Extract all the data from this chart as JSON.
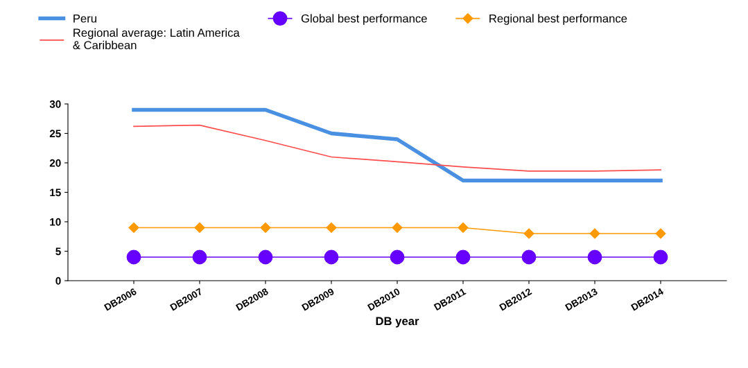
{
  "chart_data": {
    "type": "line",
    "xlabel": "DB year",
    "categories": [
      "DB2006",
      "DB2007",
      "DB2008",
      "DB2009",
      "DB2010",
      "DB2011",
      "DB2012",
      "DB2013",
      "DB2014"
    ],
    "series": [
      {
        "name": "Peru",
        "color": "#4a90e2",
        "marker": "none",
        "values": [
          29,
          29,
          29,
          25,
          24,
          17,
          17,
          17,
          17
        ]
      },
      {
        "name": "Regional average: Latin America\n& Caribbean",
        "color": "#ff4d4d",
        "marker": "none",
        "values": [
          26.2,
          26.4,
          23.8,
          21.0,
          20.2,
          19.3,
          18.6,
          18.6,
          18.8
        ]
      },
      {
        "name": "Global best performance",
        "color": "#6600ff",
        "marker": "circle",
        "values": [
          4,
          4,
          4,
          4,
          4,
          4,
          4,
          4,
          4
        ]
      },
      {
        "name": "Regional best performance",
        "color": "#ff9900",
        "marker": "diamond",
        "values": [
          9,
          9,
          9,
          9,
          9,
          9,
          8,
          8,
          8
        ]
      }
    ],
    "ylim": [
      0,
      30
    ],
    "yticks": [
      0,
      5,
      10,
      15,
      20,
      25,
      30
    ],
    "grid": false,
    "legend": "top"
  }
}
